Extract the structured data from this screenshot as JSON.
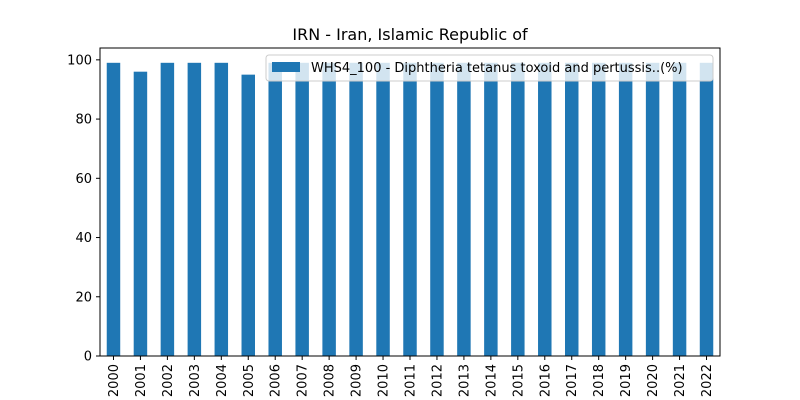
{
  "chart_data": {
    "type": "bar",
    "title": "IRN - Iran, Islamic Republic of",
    "xlabel": "",
    "ylabel": "",
    "categories": [
      "2000",
      "2001",
      "2002",
      "2003",
      "2004",
      "2005",
      "2006",
      "2007",
      "2008",
      "2009",
      "2010",
      "2011",
      "2012",
      "2013",
      "2014",
      "2015",
      "2016",
      "2017",
      "2018",
      "2019",
      "2020",
      "2021",
      "2022"
    ],
    "series": [
      {
        "name": "WHS4_100 - Diphtheria tetanus toxoid and pertussis..(%)",
        "values": [
          99,
          96,
          99,
          99,
          99,
          95,
          99,
          99,
          99,
          99,
          99,
          99,
          99,
          99,
          99,
          99,
          99,
          99,
          99,
          99,
          99,
          99,
          99
        ],
        "color": "#1f77b4"
      }
    ],
    "ylim": [
      0,
      104
    ],
    "yticks": [
      0,
      20,
      40,
      60,
      80,
      100
    ],
    "grid": false,
    "legend_position": "top-right"
  }
}
